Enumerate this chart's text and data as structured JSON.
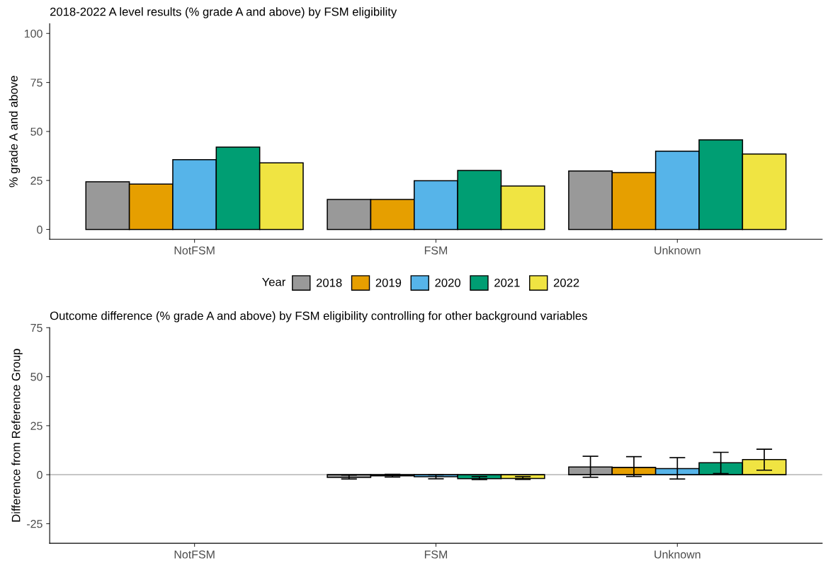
{
  "chart_data": [
    {
      "type": "bar",
      "title": "2018-2022 A level results (% grade A and above) by FSM eligibility",
      "ylabel": "% grade A and above",
      "categories": [
        "NotFSM",
        "FSM",
        "Unknown"
      ],
      "legend_title": "Year",
      "legend": "bottom",
      "grid": false,
      "ylim": [
        -5,
        105
      ],
      "yticks": [
        0,
        25,
        50,
        75,
        100
      ],
      "series": [
        {
          "name": "2018",
          "color": "#999999",
          "values": [
            24.3,
            15.3,
            29.8
          ]
        },
        {
          "name": "2019",
          "color": "#e69f00",
          "values": [
            23.2,
            15.3,
            29.0
          ]
        },
        {
          "name": "2020",
          "color": "#56b4e9",
          "values": [
            35.6,
            24.9,
            39.9
          ]
        },
        {
          "name": "2021",
          "color": "#009e73",
          "values": [
            42.0,
            30.1,
            45.7
          ]
        },
        {
          "name": "2022",
          "color": "#f0e442",
          "values": [
            34.0,
            22.2,
            38.5
          ]
        }
      ]
    },
    {
      "type": "bar",
      "title": "Outcome difference (% grade A and above) by FSM eligibility controlling for other background variables",
      "ylabel": "Difference from Reference Group",
      "categories": [
        "NotFSM",
        "FSM",
        "Unknown"
      ],
      "legend": false,
      "grid": false,
      "ylim": [
        -35,
        75
      ],
      "yticks": [
        {
          "value": -25,
          "label": "-25"
        },
        0,
        25,
        50,
        75
      ],
      "ref_lines": [
        {
          "axis": "y",
          "value": 0,
          "label": null,
          "color": "#bebebe"
        }
      ],
      "series": [
        {
          "color": "#999999",
          "values": [
            null,
            -1.4,
            3.9
          ],
          "errors": [
            null,
            [
              -2.2,
              -0.2
            ],
            [
              -1.3,
              9.4
            ]
          ]
        },
        {
          "color": "#e69f00",
          "values": [
            null,
            -0.6,
            3.7
          ],
          "errors": [
            null,
            [
              -1.2,
              0.2
            ],
            [
              -0.9,
              9.2
            ]
          ]
        },
        {
          "color": "#56b4e9",
          "values": [
            null,
            -1.0,
            3.1
          ],
          "errors": [
            null,
            [
              -2.1,
              -0.1
            ],
            [
              -2.2,
              8.7
            ]
          ]
        },
        {
          "color": "#009e73",
          "values": [
            null,
            -2.0,
            6.1
          ],
          "errors": [
            null,
            [
              -2.5,
              -1.0
            ],
            [
              0.6,
              11.4
            ]
          ]
        },
        {
          "color": "#f0e442",
          "values": [
            null,
            -1.9,
            7.7
          ],
          "errors": [
            null,
            [
              -2.4,
              -1.0
            ],
            [
              2.3,
              13.0
            ]
          ]
        }
      ]
    }
  ]
}
